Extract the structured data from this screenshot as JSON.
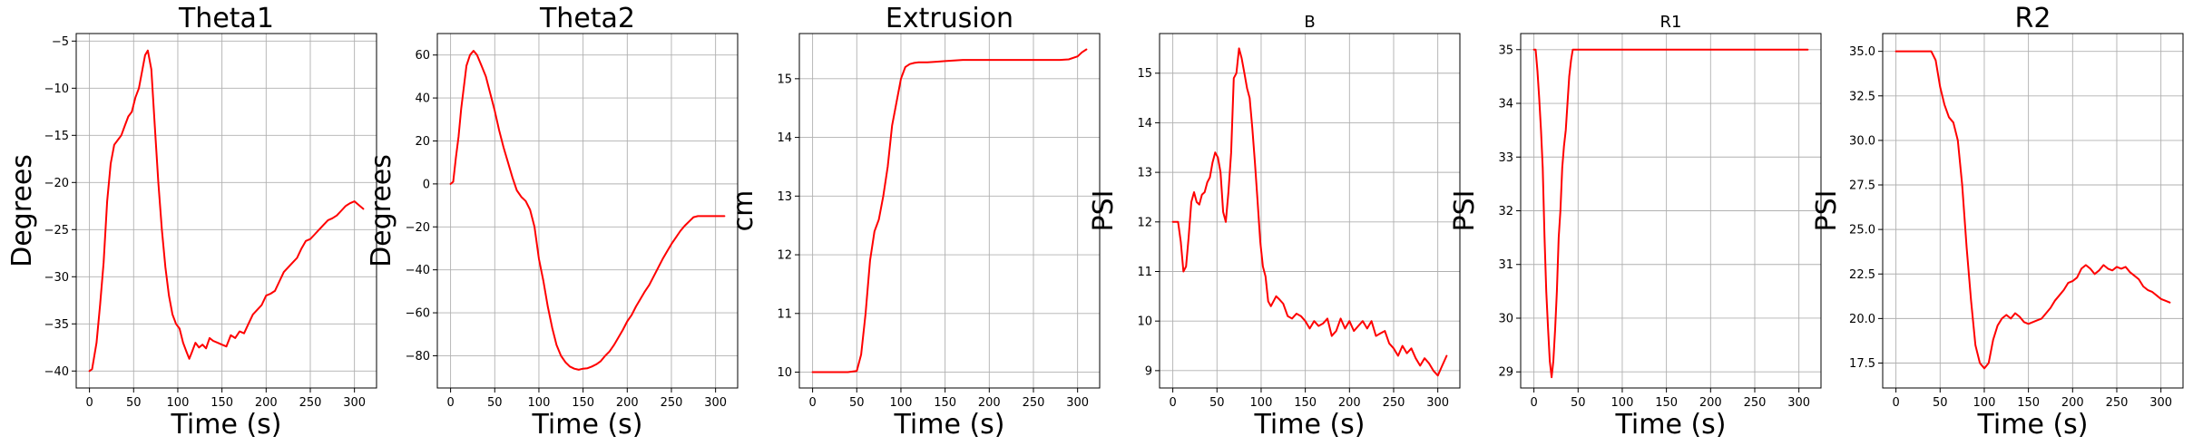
{
  "colors": {
    "line": "#ff0000",
    "grid": "#b0b0b0",
    "axes": "#000000"
  },
  "chart_data": [
    {
      "type": "line",
      "title": "Theta1",
      "xlabel": "Time (s)",
      "ylabel": "Degrees",
      "xlim": [
        -15,
        325
      ],
      "ylim": [
        -41.8,
        -4.2
      ],
      "xticks": [
        0,
        50,
        100,
        150,
        200,
        250,
        300
      ],
      "yticks": [
        -40,
        -35,
        -30,
        -25,
        -20,
        -15,
        -10,
        -5
      ],
      "grid": true,
      "series": [
        {
          "x": [
            0,
            3,
            8,
            12,
            16,
            20,
            24,
            28,
            32,
            36,
            40,
            44,
            48,
            52,
            56,
            60,
            63,
            66,
            70,
            74,
            78,
            82,
            86,
            90,
            94,
            98,
            102,
            106,
            110,
            113,
            116,
            120,
            124,
            128,
            132,
            136,
            140,
            145,
            150,
            155,
            160,
            165,
            170,
            175,
            180,
            185,
            190,
            195,
            200,
            205,
            210,
            215,
            220,
            225,
            230,
            235,
            240,
            245,
            250,
            255,
            260,
            265,
            270,
            275,
            280,
            285,
            290,
            295,
            300,
            305,
            310
          ],
          "y": [
            -40,
            -39.8,
            -37,
            -33,
            -28.5,
            -22,
            -18,
            -16,
            -15.5,
            -15,
            -14,
            -13,
            -12.5,
            -11,
            -10,
            -8,
            -6.5,
            -6,
            -8,
            -14,
            -20,
            -25,
            -29,
            -32,
            -34,
            -35,
            -35.5,
            -37,
            -38,
            -38.7,
            -38,
            -37,
            -37.5,
            -37.2,
            -37.6,
            -36.5,
            -36.8,
            -37,
            -37.2,
            -37.4,
            -36.2,
            -36.5,
            -35.8,
            -36,
            -35,
            -34,
            -33.5,
            -33,
            -32,
            -31.8,
            -31.5,
            -30.5,
            -29.5,
            -29,
            -28.5,
            -28,
            -27,
            -26.2,
            -26,
            -25.5,
            -25,
            -24.5,
            -24,
            -23.8,
            -23.5,
            -23,
            -22.5,
            -22.2,
            -22,
            -22.4,
            -22.8
          ]
        }
      ]
    },
    {
      "type": "line",
      "title": "Theta2",
      "xlabel": "Time (s)",
      "ylabel": "Degrees",
      "xlim": [
        -15,
        325
      ],
      "ylim": [
        -95,
        70
      ],
      "xticks": [
        0,
        50,
        100,
        150,
        200,
        250,
        300
      ],
      "yticks": [
        -80,
        -60,
        -40,
        -20,
        0,
        20,
        40,
        60
      ],
      "grid": true,
      "series": [
        {
          "x": [
            0,
            3,
            6,
            9,
            12,
            15,
            18,
            22,
            26,
            30,
            35,
            40,
            45,
            50,
            55,
            60,
            65,
            70,
            75,
            80,
            85,
            90,
            95,
            100,
            105,
            110,
            115,
            120,
            125,
            130,
            135,
            140,
            145,
            150,
            155,
            160,
            165,
            170,
            175,
            180,
            185,
            190,
            195,
            200,
            205,
            210,
            215,
            220,
            225,
            230,
            235,
            240,
            245,
            250,
            255,
            260,
            265,
            270,
            275,
            280,
            285,
            290,
            295,
            300,
            305,
            310
          ],
          "y": [
            0,
            1,
            12,
            22,
            35,
            45,
            55,
            60,
            62,
            60,
            55,
            50,
            42,
            34,
            25,
            17,
            10,
            3,
            -3,
            -6,
            -8,
            -12,
            -20,
            -35,
            -45,
            -57,
            -67,
            -75,
            -80,
            -83,
            -85,
            -86,
            -86.5,
            -86,
            -85.8,
            -85,
            -84,
            -82.5,
            -80,
            -78,
            -75,
            -71.5,
            -68,
            -64,
            -61,
            -57,
            -53.5,
            -50,
            -47,
            -43,
            -39,
            -35,
            -31.5,
            -28,
            -25,
            -22,
            -19.5,
            -17.5,
            -15.5,
            -15,
            -15,
            -15,
            -15,
            -15,
            -15,
            -15
          ]
        }
      ]
    },
    {
      "type": "line",
      "title": "Extrusion",
      "xlabel": "Time (s)",
      "ylabel": "cm",
      "xlim": [
        -15,
        325
      ],
      "ylim": [
        9.73,
        15.77
      ],
      "xticks": [
        0,
        50,
        100,
        150,
        200,
        250,
        300
      ],
      "yticks": [
        10,
        11,
        12,
        13,
        14,
        15
      ],
      "grid": true,
      "series": [
        {
          "x": [
            0,
            10,
            20,
            30,
            40,
            50,
            55,
            60,
            65,
            70,
            75,
            80,
            85,
            90,
            95,
            100,
            105,
            110,
            115,
            120,
            130,
            140,
            150,
            160,
            170,
            180,
            200,
            220,
            240,
            260,
            280,
            290,
            300,
            305,
            310
          ],
          "y": [
            10,
            10,
            10,
            10,
            10,
            10.02,
            10.3,
            11,
            11.9,
            12.4,
            12.6,
            13,
            13.5,
            14.2,
            14.6,
            15,
            15.2,
            15.25,
            15.27,
            15.28,
            15.28,
            15.29,
            15.3,
            15.31,
            15.32,
            15.32,
            15.32,
            15.32,
            15.32,
            15.32,
            15.32,
            15.33,
            15.38,
            15.45,
            15.5
          ]
        }
      ]
    },
    {
      "type": "line",
      "title": "B",
      "xlabel": "Time (s)",
      "ylabel": "PSI",
      "xlim": [
        -15,
        325
      ],
      "ylim": [
        8.65,
        15.8
      ],
      "xticks": [
        0,
        50,
        100,
        150,
        200,
        250,
        300
      ],
      "yticks": [
        9,
        10,
        11,
        12,
        13,
        14,
        15
      ],
      "grid": true,
      "series": [
        {
          "x": [
            0,
            3,
            6,
            9,
            12,
            15,
            18,
            21,
            24,
            27,
            30,
            33,
            36,
            39,
            42,
            45,
            48,
            51,
            54,
            57,
            60,
            63,
            66,
            69,
            72,
            75,
            78,
            81,
            84,
            87,
            90,
            93,
            96,
            99,
            102,
            105,
            108,
            111,
            114,
            117,
            120,
            125,
            130,
            135,
            140,
            145,
            150,
            155,
            160,
            165,
            170,
            175,
            180,
            185,
            190,
            195,
            200,
            205,
            210,
            215,
            220,
            225,
            230,
            235,
            240,
            245,
            250,
            255,
            260,
            265,
            270,
            275,
            280,
            285,
            290,
            295,
            300,
            305,
            310
          ],
          "y": [
            12,
            12,
            12,
            11.6,
            11,
            11.1,
            11.7,
            12.4,
            12.6,
            12.4,
            12.35,
            12.55,
            12.6,
            12.8,
            12.9,
            13.2,
            13.4,
            13.3,
            13,
            12.2,
            12,
            12.6,
            13.4,
            14.9,
            15,
            15.5,
            15.3,
            15,
            14.7,
            14.5,
            13.9,
            13.2,
            12.4,
            11.6,
            11.1,
            10.9,
            10.4,
            10.3,
            10.4,
            10.5,
            10.45,
            10.35,
            10.1,
            10.05,
            10.15,
            10.1,
            10,
            9.85,
            10,
            9.9,
            9.95,
            10.05,
            9.7,
            9.8,
            10.05,
            9.85,
            10,
            9.8,
            9.9,
            10,
            9.85,
            10,
            9.7,
            9.75,
            9.8,
            9.55,
            9.45,
            9.3,
            9.5,
            9.35,
            9.45,
            9.25,
            9.1,
            9.25,
            9.15,
            9,
            8.9,
            9.1,
            9.3
          ]
        }
      ]
    },
    {
      "type": "line",
      "title": "R1",
      "xlabel": "Time (s)",
      "ylabel": "PSI",
      "xlim": [
        -15,
        325
      ],
      "ylim": [
        28.7,
        35.3
      ],
      "xticks": [
        0,
        50,
        100,
        150,
        200,
        250,
        300
      ],
      "yticks": [
        29,
        30,
        31,
        32,
        33,
        34,
        35
      ],
      "grid": true,
      "series": [
        {
          "x": [
            0,
            2,
            4,
            6,
            8,
            10,
            12,
            14,
            16,
            18,
            20,
            22,
            24,
            26,
            28,
            30,
            32,
            34,
            36,
            38,
            40,
            42,
            44,
            46,
            50,
            60,
            100,
            150,
            200,
            250,
            300,
            310
          ],
          "y": [
            35,
            35,
            34.6,
            34.1,
            33.5,
            32.8,
            31.5,
            30.5,
            29.8,
            29.2,
            28.9,
            29.2,
            29.8,
            30.5,
            31.5,
            32,
            32.8,
            33.2,
            33.5,
            34,
            34.5,
            34.8,
            35,
            35,
            35,
            35,
            35,
            35,
            35,
            35,
            35,
            35
          ]
        }
      ]
    },
    {
      "type": "line",
      "title": "R2",
      "xlabel": "Time (s)",
      "ylabel": "PSI",
      "xlim": [
        -15,
        325
      ],
      "ylim": [
        16.1,
        36.0
      ],
      "xticks": [
        0,
        50,
        100,
        150,
        200,
        250,
        300
      ],
      "yticks": [
        17.5,
        20.0,
        22.5,
        25.0,
        27.5,
        30.0,
        32.5,
        35.0
      ],
      "grid": true,
      "series": [
        {
          "x": [
            0,
            10,
            20,
            30,
            40,
            45,
            50,
            55,
            60,
            65,
            70,
            75,
            80,
            85,
            90,
            95,
            100,
            105,
            110,
            115,
            120,
            125,
            130,
            135,
            140,
            145,
            150,
            155,
            160,
            165,
            170,
            175,
            180,
            185,
            190,
            195,
            200,
            205,
            210,
            215,
            220,
            225,
            230,
            235,
            240,
            245,
            250,
            255,
            260,
            265,
            270,
            275,
            280,
            285,
            290,
            295,
            300,
            305,
            310
          ],
          "y": [
            35,
            35,
            35,
            35,
            35,
            34.5,
            33,
            32,
            31.3,
            31,
            30,
            27.5,
            24,
            21,
            18.5,
            17.5,
            17.2,
            17.5,
            18.8,
            19.6,
            20,
            20.2,
            20,
            20.3,
            20.1,
            19.8,
            19.7,
            19.8,
            19.9,
            20,
            20.3,
            20.6,
            21,
            21.3,
            21.6,
            22,
            22.1,
            22.3,
            22.8,
            23,
            22.8,
            22.5,
            22.7,
            23,
            22.8,
            22.7,
            22.9,
            22.8,
            22.9,
            22.6,
            22.4,
            22.2,
            21.8,
            21.6,
            21.5,
            21.3,
            21.1,
            21,
            20.9
          ]
        }
      ]
    }
  ]
}
